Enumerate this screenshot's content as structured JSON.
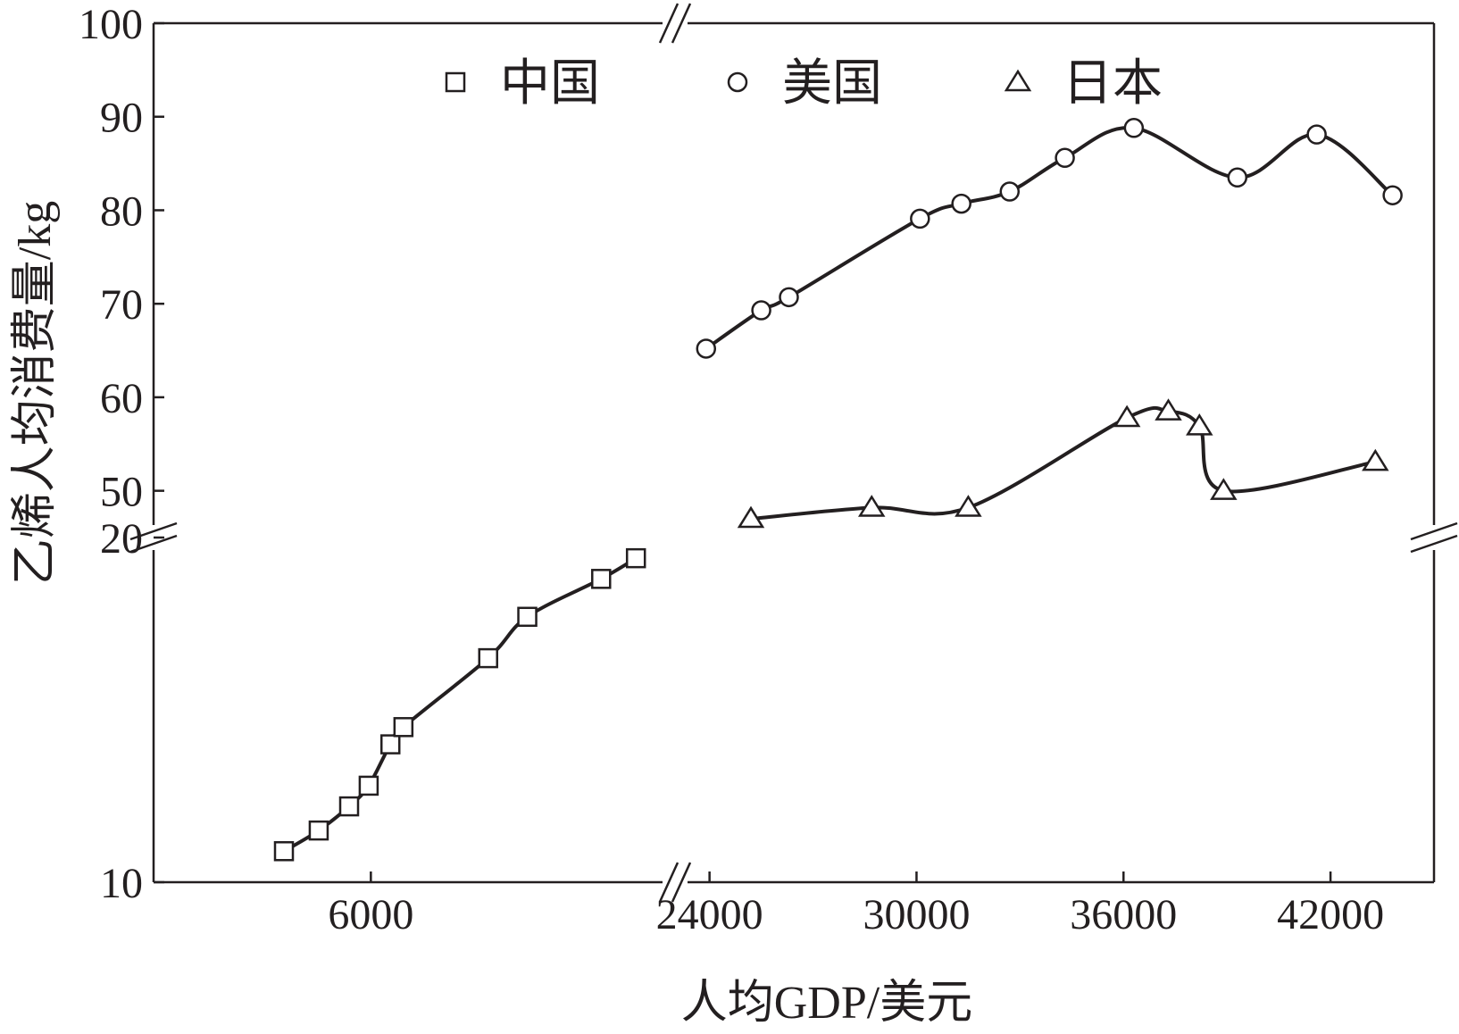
{
  "chart_data": {
    "type": "line",
    "xlabel": "人均GDP/美元",
    "ylabel": "乙烯人均消费量/kg",
    "x_axis": {
      "broken": true,
      "segments": [
        {
          "range": [
            1000,
            13000
          ],
          "ticks": [
            6000
          ]
        },
        {
          "range": [
            23000,
            45000
          ],
          "ticks": [
            24000,
            30000,
            36000,
            42000
          ]
        }
      ]
    },
    "y_axis": {
      "broken": true,
      "segments": [
        {
          "range": [
            10,
            20
          ],
          "ticks": [
            10,
            20
          ]
        },
        {
          "range": [
            45,
            100
          ],
          "ticks": [
            50,
            60,
            70,
            80,
            90,
            100
          ]
        }
      ]
    },
    "legend": {
      "position": "top",
      "orientation": "horizontal"
    },
    "series": [
      {
        "name": "中国",
        "marker": "square",
        "points": [
          {
            "x": 4000,
            "y": 10.9
          },
          {
            "x": 4800,
            "y": 11.5
          },
          {
            "x": 5500,
            "y": 12.2
          },
          {
            "x": 5950,
            "y": 12.8
          },
          {
            "x": 6450,
            "y": 14.0
          },
          {
            "x": 6750,
            "y": 14.5
          },
          {
            "x": 8700,
            "y": 16.5
          },
          {
            "x": 9600,
            "y": 17.7
          },
          {
            "x": 11300,
            "y": 18.8
          },
          {
            "x": 12100,
            "y": 19.4
          }
        ]
      },
      {
        "name": "美国",
        "marker": "circle",
        "points": [
          {
            "x": 23900,
            "y": 65.2
          },
          {
            "x": 25500,
            "y": 69.3
          },
          {
            "x": 26300,
            "y": 70.7
          },
          {
            "x": 30100,
            "y": 79.1
          },
          {
            "x": 31300,
            "y": 80.7
          },
          {
            "x": 32700,
            "y": 82.0
          },
          {
            "x": 34300,
            "y": 85.6
          },
          {
            "x": 36300,
            "y": 88.8
          },
          {
            "x": 39300,
            "y": 83.5
          },
          {
            "x": 41600,
            "y": 88.1
          },
          {
            "x": 43800,
            "y": 81.6
          }
        ]
      },
      {
        "name": "日本",
        "marker": "triangle",
        "points": [
          {
            "x": 25200,
            "y": 47.0
          },
          {
            "x": 28700,
            "y": 48.2
          },
          {
            "x": 31500,
            "y": 48.2
          },
          {
            "x": 36100,
            "y": 57.8
          },
          {
            "x": 37300,
            "y": 58.5
          },
          {
            "x": 38200,
            "y": 56.9
          },
          {
            "x": 38900,
            "y": 50.0
          },
          {
            "x": 43300,
            "y": 53.1
          }
        ]
      }
    ]
  }
}
